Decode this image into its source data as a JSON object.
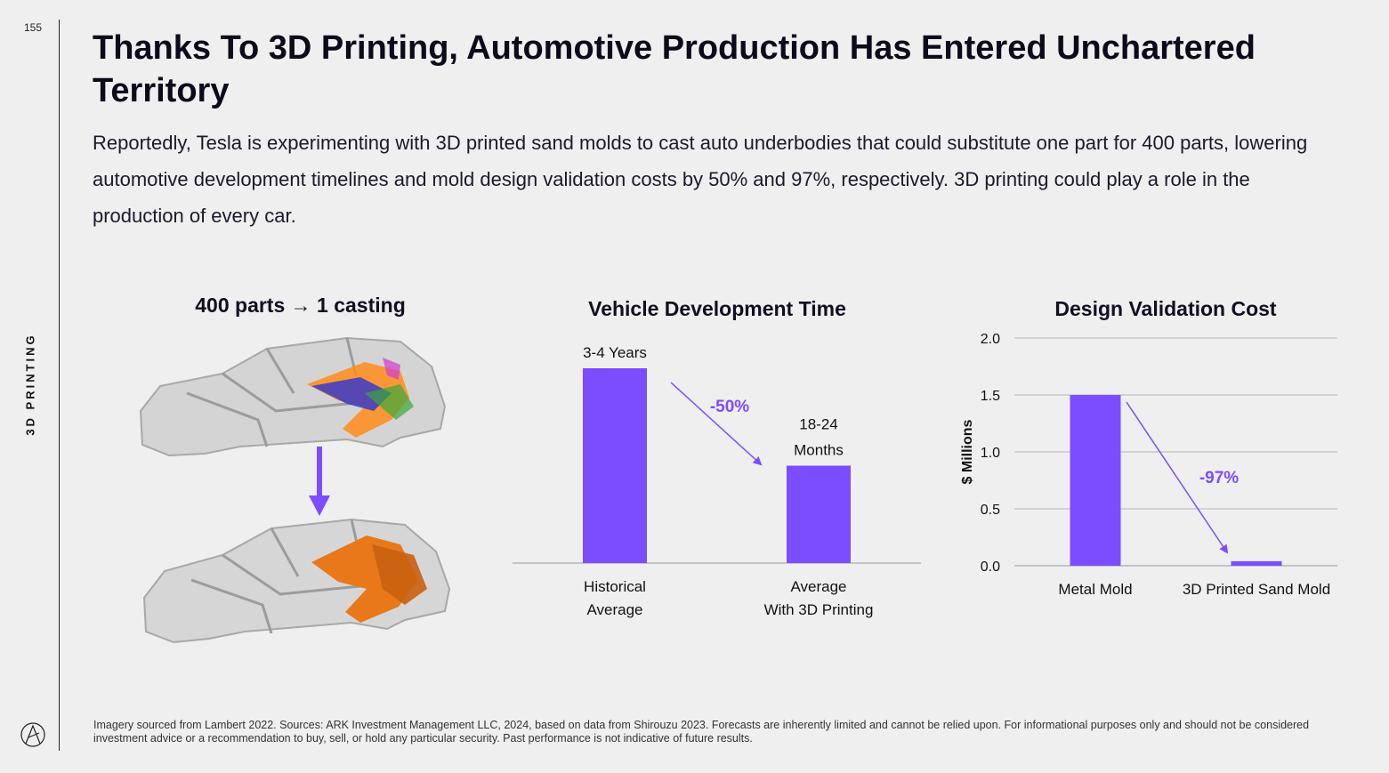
{
  "page": {
    "number": "155",
    "section": "3D PRINTING",
    "title": "Thanks To 3D Printing, Automotive Production Has Entered Unchartered Territory",
    "intro": "Reportedly, Tesla is experimenting with 3D printed sand molds to cast auto underbodies that could substitute one part for 400 parts, lowering automotive development timelines and mold design validation costs by 50% and 97%, respectively. 3D printing could play a role in the production of every car.",
    "image_title": "400 parts → 1 casting",
    "footnote": "Imagery sourced from Lambert 2022. Sources: ARK Investment Management LLC, 2024, based on data from Shirouzu 2023. Forecasts are inherently limited and cannot be relied upon. For informational purposes only and should not be considered investment advice or a recommendation to buy, sell, or hold any particular security. Past performance is not indicative of future results."
  },
  "colors": {
    "accent": "#7c4dff",
    "axis": "#b5b5b5",
    "text": "#101020"
  },
  "chart_data": [
    {
      "type": "bar",
      "title": "Vehicle Development Time",
      "categories": [
        [
          "Historical",
          "Average"
        ],
        [
          "Average",
          "With 3D Printing"
        ]
      ],
      "values": [
        3.5,
        1.75
      ],
      "value_unit": "years",
      "data_labels": [
        [
          "3-4 Years"
        ],
        [
          "18-24",
          "Months"
        ]
      ],
      "annotation": "-50%",
      "xlabel": "",
      "ylabel": "",
      "ylim": [
        0,
        3.5
      ],
      "grid": false,
      "y_axis_visible": false
    },
    {
      "type": "bar",
      "title": "Design Validation Cost",
      "categories": [
        "Metal Mold",
        "3D Printed Sand Mold"
      ],
      "values": [
        1.5,
        0.04
      ],
      "ylabel": "$ Millions",
      "xlabel": "",
      "ylim": [
        0,
        2.0
      ],
      "yticks": [
        "0.0",
        "0.5",
        "1.0",
        "1.5",
        "2.0"
      ],
      "grid": true,
      "annotation": "-97%"
    }
  ]
}
